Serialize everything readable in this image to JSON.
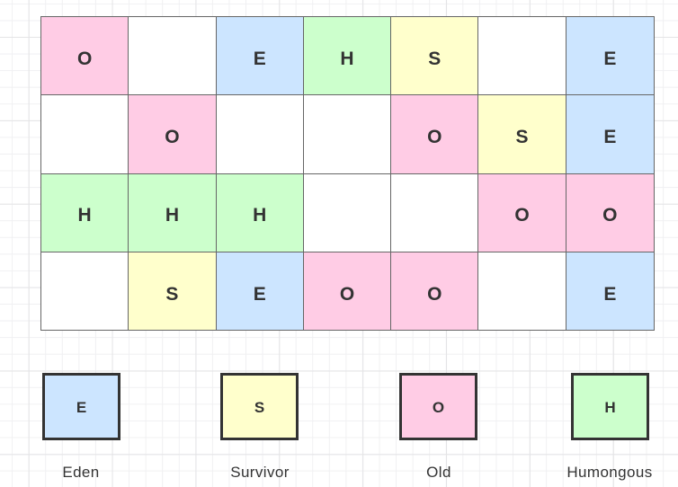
{
  "canvas": {
    "background": "#ffffff",
    "grid_minor_color": "#f0f0f2",
    "grid_major_color": "#e4e4e6"
  },
  "palette": {
    "E": {
      "fill": "#cce5ff",
      "label": "Eden"
    },
    "S": {
      "fill": "#ffffcc",
      "label": "Survivor"
    },
    "O": {
      "fill": "#ffcce5",
      "label": "Old"
    },
    "H": {
      "fill": "#ccffcc",
      "label": "Humongous"
    },
    "empty": {
      "fill": "#ffffff"
    },
    "cell_border": "#666666",
    "legend_border": "#333333",
    "text_color": "#333333"
  },
  "grid": {
    "rows": 4,
    "cols": 7,
    "cells": [
      [
        "O",
        "",
        "E",
        "H",
        "S",
        "",
        "E"
      ],
      [
        "",
        "O",
        "",
        "",
        "O",
        "S",
        "E"
      ],
      [
        "H",
        "H",
        "H",
        "",
        "",
        "O",
        "O"
      ],
      [
        "",
        "S",
        "E",
        "O",
        "O",
        "",
        "E"
      ]
    ]
  },
  "legend": {
    "items": [
      {
        "letter": "E",
        "label": "Eden"
      },
      {
        "letter": "S",
        "label": "Survivor"
      },
      {
        "letter": "O",
        "label": "Old"
      },
      {
        "letter": "H",
        "label": "Humongous"
      }
    ]
  }
}
